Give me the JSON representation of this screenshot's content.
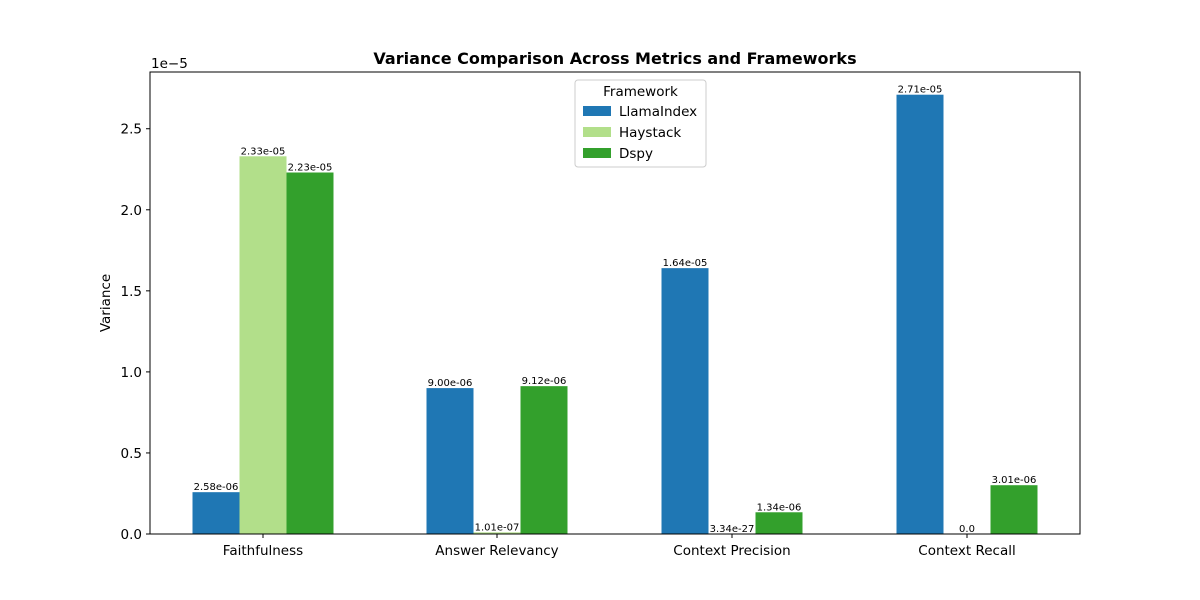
{
  "chart_data": {
    "type": "bar",
    "title": "Variance Comparison Across Metrics and Frameworks",
    "xlabel": "",
    "ylabel": "Variance",
    "y_offset_label": "1e−5",
    "y_scale_factor": 1e-05,
    "ylim": [
      0,
      2.85e-05
    ],
    "yticks": [
      0,
      5e-06,
      1e-05,
      1.5e-05,
      2e-05,
      2.5e-05
    ],
    "ytick_labels": [
      "0.0",
      "0.5",
      "1.0",
      "1.5",
      "2.0",
      "2.5"
    ],
    "categories": [
      "Faithfulness",
      "Answer Relevancy",
      "Context Precision",
      "Context Recall"
    ],
    "series": [
      {
        "name": "LlamaIndex",
        "color": "#1f77b4",
        "values": [
          2.58e-06,
          9e-06,
          1.64e-05,
          2.71e-05
        ],
        "labels": [
          "2.58e-06",
          "9.00e-06",
          "1.64e-05",
          "2.71e-05"
        ]
      },
      {
        "name": "Haystack",
        "color": "#b2df8a",
        "values": [
          2.33e-05,
          1.01e-07,
          3.34e-27,
          0.0
        ],
        "labels": [
          "2.33e-05",
          "1.01e-07",
          "3.34e-27",
          "0.0"
        ]
      },
      {
        "name": "Dspy",
        "color": "#33a02c",
        "values": [
          2.23e-05,
          9.12e-06,
          1.34e-06,
          3.01e-06
        ],
        "labels": [
          "2.23e-05",
          "9.12e-06",
          "1.34e-06",
          "3.01e-06"
        ]
      }
    ],
    "legend": {
      "title": "Framework",
      "position": "upper-center"
    },
    "grid": false
  }
}
